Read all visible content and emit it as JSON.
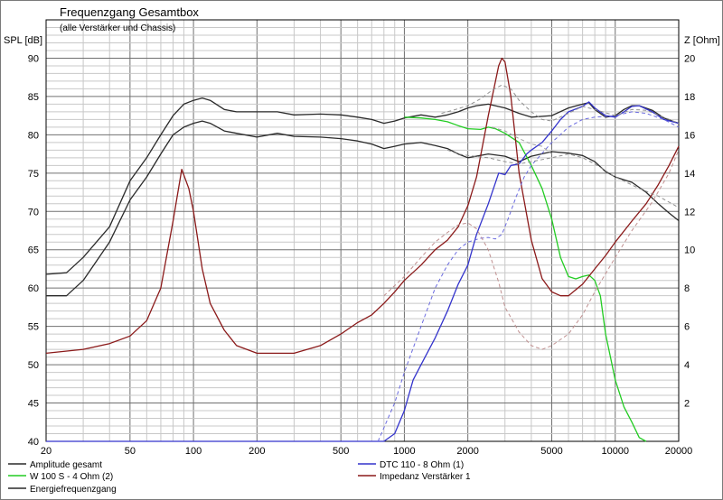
{
  "chart_data": {
    "type": "line",
    "title": "Frequenzgang Gesamtbox",
    "subtitle": "(alle Verstärker und Chassis)",
    "ylabel": "SPL [dB]",
    "y2label": "Z [Ohm]",
    "x_scale": "log",
    "xlim": [
      20,
      20000
    ],
    "ylim": [
      40,
      95
    ],
    "y2lim": [
      0,
      22
    ],
    "grid": true,
    "x_ticks": [
      20,
      50,
      100,
      200,
      500,
      1000,
      2000,
      5000,
      10000,
      20000
    ],
    "y_ticks": [
      40,
      45,
      50,
      55,
      60,
      65,
      70,
      75,
      80,
      85,
      90
    ],
    "y2_ticks": [
      2,
      4,
      6,
      8,
      10,
      12,
      14,
      16,
      18,
      20
    ],
    "legend_position": "bottom",
    "series": [
      {
        "name": "Amplitude gesamt",
        "color": "#2a2a2a",
        "axis": "left",
        "points": [
          [
            20,
            61.8
          ],
          [
            25,
            62
          ],
          [
            30,
            64
          ],
          [
            40,
            68
          ],
          [
            50,
            74
          ],
          [
            60,
            77
          ],
          [
            70,
            80
          ],
          [
            80,
            82.5
          ],
          [
            90,
            84
          ],
          [
            100,
            84.5
          ],
          [
            110,
            84.8
          ],
          [
            120,
            84.5
          ],
          [
            140,
            83.3
          ],
          [
            160,
            83
          ],
          [
            200,
            83
          ],
          [
            250,
            83
          ],
          [
            300,
            82.6
          ],
          [
            400,
            82.7
          ],
          [
            500,
            82.6
          ],
          [
            600,
            82.3
          ],
          [
            700,
            82
          ],
          [
            800,
            81.5
          ],
          [
            900,
            81.8
          ],
          [
            1000,
            82.2
          ],
          [
            1200,
            82.6
          ],
          [
            1400,
            82.3
          ],
          [
            1600,
            82.6
          ],
          [
            1800,
            83
          ],
          [
            2000,
            83.5
          ],
          [
            2200,
            83.8
          ],
          [
            2500,
            84
          ],
          [
            3000,
            83.5
          ],
          [
            3500,
            82.8
          ],
          [
            4000,
            82.3
          ],
          [
            5000,
            82.5
          ],
          [
            6000,
            83.5
          ],
          [
            7000,
            84
          ],
          [
            7500,
            84.2
          ],
          [
            8000,
            83.3
          ],
          [
            9000,
            82.3
          ],
          [
            10000,
            82.5
          ],
          [
            11000,
            83.3
          ],
          [
            12000,
            83.8
          ],
          [
            13000,
            83.8
          ],
          [
            15000,
            83.2
          ],
          [
            17000,
            82.2
          ],
          [
            20000,
            81.5
          ]
        ]
      },
      {
        "name": "Energiefrequenzgang",
        "color": "#2a2a2a",
        "axis": "left",
        "points": [
          [
            20,
            59
          ],
          [
            25,
            59
          ],
          [
            30,
            61
          ],
          [
            40,
            66
          ],
          [
            50,
            71.5
          ],
          [
            60,
            74.5
          ],
          [
            70,
            77.5
          ],
          [
            80,
            80
          ],
          [
            90,
            81
          ],
          [
            100,
            81.5
          ],
          [
            110,
            81.8
          ],
          [
            120,
            81.5
          ],
          [
            140,
            80.5
          ],
          [
            160,
            80.2
          ],
          [
            200,
            79.7
          ],
          [
            250,
            80.2
          ],
          [
            300,
            79.8
          ],
          [
            400,
            79.7
          ],
          [
            500,
            79.5
          ],
          [
            600,
            79.2
          ],
          [
            700,
            78.8
          ],
          [
            800,
            78.2
          ],
          [
            900,
            78.5
          ],
          [
            1000,
            78.8
          ],
          [
            1200,
            79
          ],
          [
            1400,
            78.6
          ],
          [
            1600,
            78.2
          ],
          [
            1800,
            77.5
          ],
          [
            2000,
            77
          ],
          [
            2500,
            77.5
          ],
          [
            3000,
            77.2
          ],
          [
            3500,
            76.5
          ],
          [
            4000,
            77.2
          ],
          [
            5000,
            77.8
          ],
          [
            6000,
            77.6
          ],
          [
            7000,
            77.3
          ],
          [
            8000,
            76.5
          ],
          [
            9000,
            75.2
          ],
          [
            10000,
            74.5
          ],
          [
            12000,
            73.8
          ],
          [
            14000,
            72.5
          ],
          [
            16000,
            71
          ],
          [
            18000,
            69.8
          ],
          [
            20000,
            68.8
          ]
        ]
      },
      {
        "name": "W 100 S - 4 Ohm (2)",
        "color": "#22cc22",
        "axis": "left",
        "points": [
          [
            1000,
            82.3
          ],
          [
            1200,
            82.2
          ],
          [
            1400,
            82
          ],
          [
            1600,
            81.7
          ],
          [
            1800,
            81.2
          ],
          [
            2000,
            80.8
          ],
          [
            2300,
            80.7
          ],
          [
            2500,
            81
          ],
          [
            2700,
            80.8
          ],
          [
            3000,
            80.2
          ],
          [
            3500,
            79
          ],
          [
            4000,
            76
          ],
          [
            4500,
            73
          ],
          [
            5000,
            69
          ],
          [
            5500,
            64
          ],
          [
            6000,
            61.5
          ],
          [
            6500,
            61.2
          ],
          [
            7000,
            61.5
          ],
          [
            7500,
            61.7
          ],
          [
            8000,
            61
          ],
          [
            8500,
            59
          ],
          [
            9000,
            54
          ],
          [
            10000,
            48
          ],
          [
            11000,
            44.5
          ],
          [
            12000,
            42.5
          ],
          [
            13000,
            40.5
          ],
          [
            14000,
            40
          ]
        ]
      },
      {
        "name": "DTC 110 - 8 Ohm (1)",
        "color": "#3333cc",
        "axis": "left",
        "points": [
          [
            20,
            40
          ],
          [
            500,
            40
          ],
          [
            800,
            40
          ],
          [
            900,
            41
          ],
          [
            1000,
            44
          ],
          [
            1100,
            48
          ],
          [
            1200,
            50
          ],
          [
            1400,
            53.5
          ],
          [
            1600,
            57
          ],
          [
            1800,
            60.5
          ],
          [
            2000,
            63
          ],
          [
            2200,
            67
          ],
          [
            2500,
            71
          ],
          [
            2800,
            75
          ],
          [
            3000,
            74.8
          ],
          [
            3200,
            76
          ],
          [
            3500,
            76.2
          ],
          [
            3800,
            77.5
          ],
          [
            4000,
            78
          ],
          [
            4500,
            79
          ],
          [
            5000,
            80.5
          ],
          [
            5500,
            82
          ],
          [
            6000,
            83
          ],
          [
            7000,
            83.7
          ],
          [
            7500,
            84.3
          ],
          [
            8000,
            83.5
          ],
          [
            9000,
            82.5
          ],
          [
            10000,
            82.3
          ],
          [
            11000,
            83
          ],
          [
            12000,
            83.7
          ],
          [
            13000,
            83.8
          ],
          [
            15000,
            83
          ],
          [
            17000,
            82
          ],
          [
            20000,
            81.5
          ]
        ]
      },
      {
        "name": "Impedanz Verstärker 1",
        "color": "#8b1a1a",
        "axis": "right",
        "points": [
          [
            20,
            4.6
          ],
          [
            30,
            4.8
          ],
          [
            40,
            5.1
          ],
          [
            50,
            5.5
          ],
          [
            60,
            6.3
          ],
          [
            70,
            8
          ],
          [
            80,
            11.5
          ],
          [
            88,
            14.2
          ],
          [
            95,
            13.2
          ],
          [
            100,
            12
          ],
          [
            110,
            9
          ],
          [
            120,
            7.2
          ],
          [
            140,
            5.8
          ],
          [
            160,
            5
          ],
          [
            200,
            4.6
          ],
          [
            250,
            4.6
          ],
          [
            300,
            4.6
          ],
          [
            400,
            5
          ],
          [
            500,
            5.6
          ],
          [
            600,
            6.2
          ],
          [
            700,
            6.6
          ],
          [
            800,
            7.2
          ],
          [
            900,
            7.8
          ],
          [
            1000,
            8.4
          ],
          [
            1200,
            9.2
          ],
          [
            1400,
            10
          ],
          [
            1600,
            10.5
          ],
          [
            1800,
            11.2
          ],
          [
            2000,
            12.3
          ],
          [
            2200,
            13.8
          ],
          [
            2500,
            17
          ],
          [
            2800,
            19.6
          ],
          [
            2900,
            20
          ],
          [
            3000,
            19.8
          ],
          [
            3200,
            18
          ],
          [
            3500,
            14
          ],
          [
            4000,
            10.5
          ],
          [
            4500,
            8.5
          ],
          [
            5000,
            7.8
          ],
          [
            5500,
            7.6
          ],
          [
            6000,
            7.6
          ],
          [
            7000,
            8.2
          ],
          [
            8000,
            9
          ],
          [
            9000,
            9.7
          ],
          [
            10000,
            10.4
          ],
          [
            12000,
            11.5
          ],
          [
            14000,
            12.4
          ],
          [
            16000,
            13.4
          ],
          [
            18000,
            14.4
          ],
          [
            20000,
            15.4
          ]
        ]
      },
      {
        "name": "DTC dashed",
        "color": "#6a6adf",
        "axis": "left",
        "dashed": true,
        "points": [
          [
            750,
            40
          ],
          [
            900,
            45
          ],
          [
            1000,
            49
          ],
          [
            1200,
            55
          ],
          [
            1400,
            60
          ],
          [
            1600,
            63
          ],
          [
            1800,
            65
          ],
          [
            2000,
            66
          ],
          [
            2300,
            66.5
          ],
          [
            2500,
            66.6
          ],
          [
            2700,
            66.4
          ],
          [
            2900,
            67
          ],
          [
            3100,
            69
          ],
          [
            3400,
            72
          ],
          [
            3700,
            74.5
          ],
          [
            4000,
            76
          ],
          [
            5000,
            79
          ],
          [
            6000,
            81
          ],
          [
            7000,
            82
          ],
          [
            8000,
            82.3
          ],
          [
            10000,
            82.5
          ],
          [
            12000,
            83
          ],
          [
            14000,
            82.8
          ],
          [
            17000,
            82
          ],
          [
            20000,
            81
          ]
        ]
      },
      {
        "name": "Amplitude dashed",
        "color": "#909090",
        "axis": "left",
        "dashed": true,
        "points": [
          [
            1500,
            82.8
          ],
          [
            1700,
            83.2
          ],
          [
            2000,
            83.8
          ],
          [
            2300,
            84.7
          ],
          [
            2600,
            85.8
          ],
          [
            2900,
            86.5
          ],
          [
            3200,
            86
          ],
          [
            3500,
            84.5
          ],
          [
            4000,
            83
          ],
          [
            4500,
            82
          ],
          [
            5000,
            81.8
          ],
          [
            6000,
            82.8
          ],
          [
            7000,
            83.7
          ],
          [
            8000,
            83.3
          ],
          [
            10000,
            82.5
          ],
          [
            12000,
            83.3
          ],
          [
            14000,
            83.2
          ],
          [
            17000,
            82.3
          ],
          [
            20000,
            81.5
          ]
        ]
      },
      {
        "name": "Energie dashed",
        "color": "#909090",
        "axis": "left",
        "dashed": true,
        "points": [
          [
            1600,
            78
          ],
          [
            1800,
            77.5
          ],
          [
            2000,
            77.3
          ],
          [
            2500,
            77
          ],
          [
            3000,
            76.5
          ],
          [
            3500,
            76.2
          ],
          [
            4000,
            76.5
          ],
          [
            5000,
            77
          ],
          [
            6000,
            77.5
          ],
          [
            7000,
            77
          ],
          [
            8000,
            76.2
          ],
          [
            10000,
            74.5
          ],
          [
            13000,
            73
          ],
          [
            16000,
            72
          ],
          [
            20000,
            70.5
          ]
        ]
      },
      {
        "name": "Impedanz dashed",
        "color": "#c09090",
        "axis": "right",
        "dashed": true,
        "points": [
          [
            800,
            7.6
          ],
          [
            1000,
            8.6
          ],
          [
            1200,
            9.6
          ],
          [
            1400,
            10.4
          ],
          [
            1600,
            10.9
          ],
          [
            1800,
            11.3
          ],
          [
            2000,
            11.4
          ],
          [
            2200,
            11.1
          ],
          [
            2500,
            10
          ],
          [
            2800,
            8.3
          ],
          [
            3000,
            7
          ],
          [
            3500,
            5.7
          ],
          [
            4000,
            5
          ],
          [
            4500,
            4.8
          ],
          [
            5000,
            5
          ],
          [
            6000,
            5.6
          ],
          [
            7000,
            6.6
          ],
          [
            8000,
            7.8
          ],
          [
            10000,
            9.6
          ],
          [
            12000,
            11
          ],
          [
            15000,
            12.5
          ],
          [
            18000,
            14
          ],
          [
            20000,
            15.2
          ]
        ]
      },
      {
        "name": "W dashed",
        "color": "#a0a0a0",
        "axis": "left",
        "dashed": true,
        "points": [
          [
            2600,
            81
          ],
          [
            3000,
            80.5
          ],
          [
            3500,
            79.5
          ],
          [
            4000,
            78.8
          ],
          [
            4500,
            78.5
          ],
          [
            5000,
            77.5
          ]
        ]
      }
    ],
    "legend": [
      {
        "label": "Amplitude gesamt",
        "color": "#2a2a2a"
      },
      {
        "label": "W 100 S - 4 Ohm (2)",
        "color": "#22cc22"
      },
      {
        "label": "Energiefrequenzgang",
        "color": "#2a2a2a"
      },
      {
        "label": "DTC 110 - 8 Ohm (1)",
        "color": "#3333cc"
      },
      {
        "label": "Impedanz Verstärker 1",
        "color": "#8b1a1a"
      }
    ]
  }
}
